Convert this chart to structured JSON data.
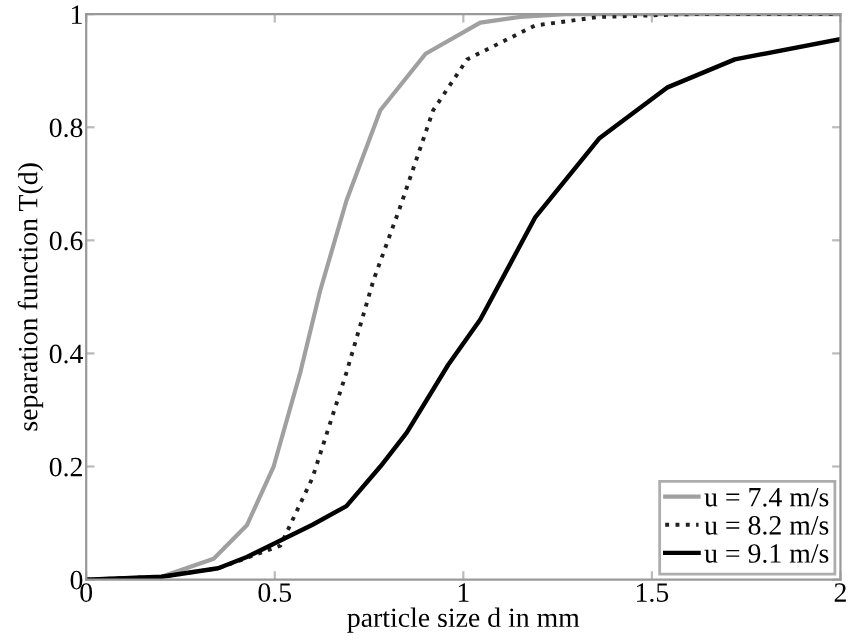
{
  "chart_data": {
    "type": "line",
    "xlabel": "particle size d in mm",
    "ylabel": "separation function T(d)",
    "xlim": [
      0,
      2
    ],
    "ylim": [
      0,
      1
    ],
    "xticks": [
      0,
      0.5,
      1,
      1.5,
      2
    ],
    "yticks": [
      0,
      0.2,
      0.4,
      0.6,
      0.8,
      1
    ],
    "grid": false,
    "legend": "bottom right",
    "marker": "none",
    "series": [
      {
        "name": "u = 7.4 m/s",
        "color": "#a0a0a0",
        "line_style": "solid",
        "x": [
          0,
          0.2,
          0.338,
          0.426,
          0.497,
          0.568,
          0.62,
          0.69,
          0.78,
          0.9,
          1.045,
          1.15,
          1.27,
          1.5,
          2
        ],
        "values": [
          0,
          0.005,
          0.037,
          0.096,
          0.2,
          0.367,
          0.51,
          0.67,
          0.83,
          0.93,
          0.985,
          0.995,
          1,
          1,
          1
        ]
      },
      {
        "name": "u = 8.2 m/s",
        "color": "#202020",
        "line_style": "dotted",
        "x": [
          0,
          0.2,
          0.35,
          0.515,
          0.6,
          0.69,
          0.762,
          0.833,
          0.92,
          1.01,
          1.19,
          1.36,
          1.6,
          2
        ],
        "values": [
          0,
          0.005,
          0.02,
          0.06,
          0.18,
          0.366,
          0.53,
          0.66,
          0.83,
          0.92,
          0.98,
          0.995,
          1,
          1
        ]
      },
      {
        "name": "u = 9.1 m/s",
        "color": "#000000",
        "line_style": "solid",
        "x": [
          0,
          0.2,
          0.35,
          0.426,
          0.6,
          0.69,
          0.78,
          0.85,
          0.96,
          1.045,
          1.19,
          1.36,
          1.54,
          1.72,
          2
        ],
        "values": [
          0,
          0.005,
          0.02,
          0.04,
          0.097,
          0.13,
          0.2,
          0.26,
          0.38,
          0.46,
          0.64,
          0.78,
          0.87,
          0.92,
          0.956
        ]
      }
    ]
  }
}
